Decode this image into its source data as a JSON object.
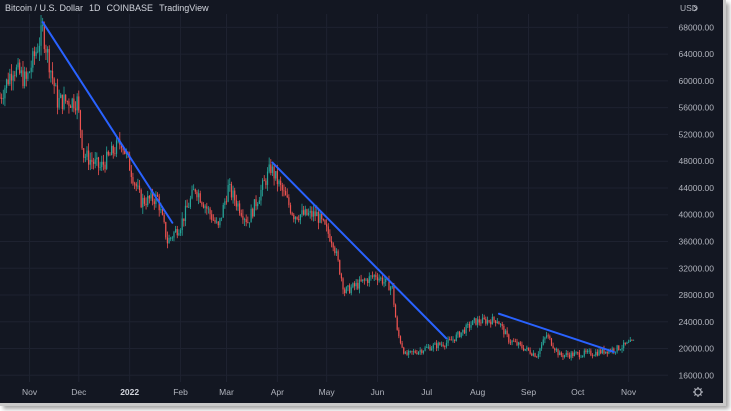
{
  "header": {
    "symbol": "Bitcoin / U.S. Dollar",
    "interval": "1D",
    "exchange": "COINBASE",
    "source": "TradingView"
  },
  "currency_label": "USD",
  "settings_icon": "gear-icon",
  "colors": {
    "background": "#131722",
    "grid": "#1e2230",
    "up": "#26a69a",
    "down": "#ef5350",
    "trendline": "#2962ff"
  },
  "chart_data": {
    "type": "candlestick",
    "title": "Bitcoin / U.S. Dollar",
    "ylabel": "USD",
    "ylim": [
      15000,
      70000
    ],
    "y_ticks": [
      16000,
      20000,
      24000,
      28000,
      32000,
      36000,
      40000,
      44000,
      48000,
      52000,
      56000,
      60000,
      64000,
      68000
    ],
    "x_ticks": [
      {
        "label": "Nov",
        "date": "2021-11-01"
      },
      {
        "label": "Dec",
        "date": "2021-12-01"
      },
      {
        "label": "2022",
        "date": "2022-01-01",
        "bold": true
      },
      {
        "label": "Feb",
        "date": "2022-02-01"
      },
      {
        "label": "Mar",
        "date": "2022-03-01"
      },
      {
        "label": "Apr",
        "date": "2022-04-01"
      },
      {
        "label": "May",
        "date": "2022-05-01"
      },
      {
        "label": "Jun",
        "date": "2022-06-01"
      },
      {
        "label": "Jul",
        "date": "2022-07-01"
      },
      {
        "label": "Aug",
        "date": "2022-08-01"
      },
      {
        "label": "Sep",
        "date": "2022-09-01"
      },
      {
        "label": "Oct",
        "date": "2022-10-01"
      },
      {
        "label": "Nov",
        "date": "2022-11-01"
      }
    ],
    "x_range": [
      "2021-10-14",
      "2022-11-25"
    ],
    "price_path": [
      {
        "date": "2021-10-14",
        "close": 57500
      },
      {
        "date": "2021-10-22",
        "close": 62000
      },
      {
        "date": "2021-10-30",
        "close": 60000
      },
      {
        "date": "2021-11-09",
        "close": 67500
      },
      {
        "date": "2021-11-18",
        "close": 57000
      },
      {
        "date": "2021-11-30",
        "close": 57000
      },
      {
        "date": "2021-12-04",
        "close": 49000
      },
      {
        "date": "2021-12-14",
        "close": 47000
      },
      {
        "date": "2021-12-27",
        "close": 51000
      },
      {
        "date": "2022-01-08",
        "close": 42000
      },
      {
        "date": "2022-01-18",
        "close": 42500
      },
      {
        "date": "2022-01-24",
        "close": 36000
      },
      {
        "date": "2022-02-01",
        "close": 38500
      },
      {
        "date": "2022-02-10",
        "close": 44000
      },
      {
        "date": "2022-02-24",
        "close": 38000
      },
      {
        "date": "2022-03-02",
        "close": 44000
      },
      {
        "date": "2022-03-14",
        "close": 39000
      },
      {
        "date": "2022-03-28",
        "close": 47000
      },
      {
        "date": "2022-04-11",
        "close": 40000
      },
      {
        "date": "2022-04-25",
        "close": 40000
      },
      {
        "date": "2022-05-05",
        "close": 36000
      },
      {
        "date": "2022-05-12",
        "close": 28500
      },
      {
        "date": "2022-05-31",
        "close": 31000
      },
      {
        "date": "2022-06-10",
        "close": 29000
      },
      {
        "date": "2022-06-13",
        "close": 22500
      },
      {
        "date": "2022-06-18",
        "close": 19000
      },
      {
        "date": "2022-06-30",
        "close": 20000
      },
      {
        "date": "2022-07-15",
        "close": 21000
      },
      {
        "date": "2022-07-30",
        "close": 24000
      },
      {
        "date": "2022-08-13",
        "close": 24300
      },
      {
        "date": "2022-08-20",
        "close": 21300
      },
      {
        "date": "2022-09-06",
        "close": 19000
      },
      {
        "date": "2022-09-12",
        "close": 22000
      },
      {
        "date": "2022-09-20",
        "close": 19000
      },
      {
        "date": "2022-10-10",
        "close": 19300
      },
      {
        "date": "2022-10-25",
        "close": 20000
      },
      {
        "date": "2022-11-04",
        "close": 21000
      }
    ],
    "trendlines": [
      {
        "from": {
          "date": "2021-11-09",
          "price": 68800
        },
        "to": {
          "date": "2022-01-27",
          "price": 38800
        }
      },
      {
        "from": {
          "date": "2022-03-29",
          "price": 47800
        },
        "to": {
          "date": "2022-07-13",
          "price": 21500
        }
      },
      {
        "from": {
          "date": "2022-08-14",
          "price": 25200
        },
        "to": {
          "date": "2022-10-23",
          "price": 19500
        }
      }
    ]
  }
}
